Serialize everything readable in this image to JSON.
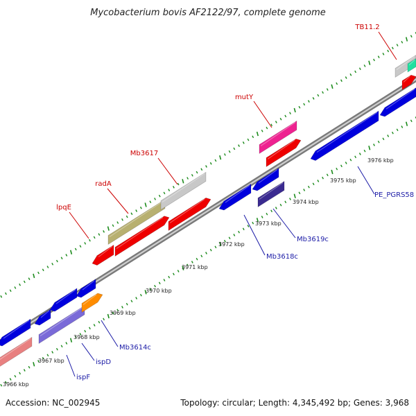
{
  "title": "Mycobacterium bovis AF2122/97, complete genome",
  "footer": {
    "accession": "Accession: NC_002945",
    "summary": "Topology: circular; Length: 4,345,492 bp; Genes: 3,968"
  },
  "colors": {
    "backbone": "#8a8a8a",
    "backbone_highlight": "#cfcfcf",
    "tick": "#1a8a1a",
    "fwd_label": "#cc0000",
    "rev_label": "#1a1aa6"
  },
  "ticks": [
    {
      "label": "3966 kbp"
    },
    {
      "label": "3967 kbp"
    },
    {
      "label": "3968 kbp"
    },
    {
      "label": "3969 kbp"
    },
    {
      "label": "3970 kbp"
    },
    {
      "label": "3971 kbp"
    },
    {
      "label": "3972 kbp"
    },
    {
      "label": "3973 kbp"
    },
    {
      "label": "3974 kbp"
    },
    {
      "label": "3975 kbp"
    },
    {
      "label": "3976 kbp"
    }
  ],
  "labels_forward": [
    {
      "text": "lpqE"
    },
    {
      "text": "radA"
    },
    {
      "text": "Mb3617"
    },
    {
      "text": "mutY"
    },
    {
      "text": "TB11.2"
    }
  ],
  "labels_reverse": [
    {
      "text": "ispF"
    },
    {
      "text": "ispD"
    },
    {
      "text": "Mb3614c"
    },
    {
      "text": "Mb3618c"
    },
    {
      "text": "Mb3619c"
    },
    {
      "text": "PE_PGRS58"
    }
  ],
  "features": [
    {
      "color": "#e88080"
    },
    {
      "color": "#0000dd"
    },
    {
      "color": "#0000dd"
    },
    {
      "color": "#0000dd"
    },
    {
      "color": "#0000dd"
    },
    {
      "color": "#7a6ad8"
    },
    {
      "color": "#ff8c00"
    },
    {
      "color": "#ee0000"
    },
    {
      "color": "#b8b070"
    },
    {
      "color": "#c8c8c8"
    },
    {
      "color": "#ee0000"
    },
    {
      "color": "#ee0000"
    },
    {
      "color": "#0000dd"
    },
    {
      "color": "#0000dd"
    },
    {
      "color": "#3a2a90"
    },
    {
      "color": "#ee2290"
    },
    {
      "color": "#ee0000"
    },
    {
      "color": "#0000dd"
    },
    {
      "color": "#0000dd"
    },
    {
      "color": "#c8c8c8"
    },
    {
      "color": "#ee0000"
    },
    {
      "color": "#20e0a0"
    }
  ]
}
